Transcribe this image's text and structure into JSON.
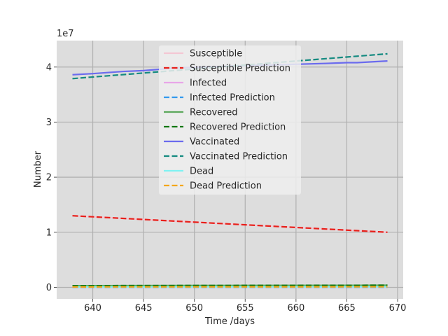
{
  "chart_data": {
    "type": "line",
    "xlabel": "Time /days",
    "ylabel": "Number",
    "y_offset_label": "1e7",
    "xlim": [
      636.45,
      670.55
    ],
    "ylim": [
      -2100000,
      44800000
    ],
    "x_ticks": [
      640,
      645,
      650,
      655,
      660,
      665,
      670
    ],
    "y_ticks": [
      0,
      10000000,
      20000000,
      30000000,
      40000000
    ],
    "y_tick_labels": [
      "0",
      "1",
      "2",
      "3",
      "4"
    ],
    "grid": true,
    "legend_position": "upper-center",
    "series": [
      {
        "name": "Susceptible",
        "color": "#f4c7d4",
        "dash": "solid",
        "x": [
          638,
          669
        ],
        "y": [
          13000000,
          10000000
        ]
      },
      {
        "name": "Susceptible Prediction",
        "color": "#e8201a",
        "dash": "dashed",
        "x": [
          638,
          669
        ],
        "y": [
          13000000,
          10000000
        ]
      },
      {
        "name": "Infected",
        "color": "#e8a6e8",
        "dash": "solid",
        "x": [
          638,
          669
        ],
        "y": [
          30000,
          30000
        ]
      },
      {
        "name": "Infected Prediction",
        "color": "#3399ee",
        "dash": "dashed",
        "x": [
          638,
          669
        ],
        "y": [
          30000,
          30000
        ]
      },
      {
        "name": "Recovered",
        "color": "#5ca85c",
        "dash": "solid",
        "x": [
          638,
          669
        ],
        "y": [
          300000,
          380000
        ]
      },
      {
        "name": "Recovered Prediction",
        "color": "#117711",
        "dash": "dashed",
        "x": [
          638,
          669
        ],
        "y": [
          300000,
          380000
        ]
      },
      {
        "name": "Vaccinated",
        "color": "#6b6bee",
        "dash": "solid",
        "x": [
          638,
          640,
          643,
          645,
          648,
          651,
          654,
          657,
          660,
          663,
          665,
          666,
          669
        ],
        "y": [
          38600000,
          38800000,
          39200000,
          39350000,
          39800000,
          40000000,
          40200000,
          40350000,
          40500000,
          40650000,
          40800000,
          40800000,
          41100000
        ]
      },
      {
        "name": "Vaccinated Prediction",
        "color": "#148a80",
        "dash": "dashed",
        "x": [
          638,
          669
        ],
        "y": [
          37900000,
          42400000
        ]
      },
      {
        "name": "Dead",
        "color": "#7ff2f2",
        "dash": "solid",
        "x": [
          638,
          669
        ],
        "y": [
          80000,
          100000
        ]
      },
      {
        "name": "Dead Prediction",
        "color": "#f4a71a",
        "dash": "dashed",
        "x": [
          638,
          669
        ],
        "y": [
          80000,
          100000
        ]
      }
    ]
  }
}
